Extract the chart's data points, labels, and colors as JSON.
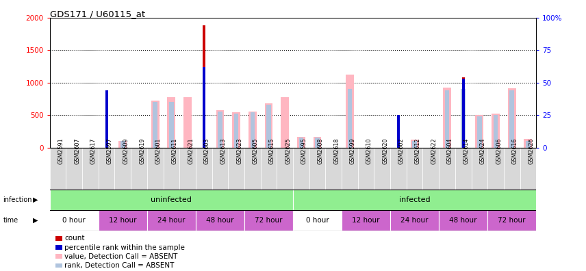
{
  "title": "GDS171 / U60115_at",
  "samples": [
    "GSM2591",
    "GSM2607",
    "GSM2617",
    "GSM2597",
    "GSM2609",
    "GSM2619",
    "GSM2601",
    "GSM2611",
    "GSM2621",
    "GSM2603",
    "GSM2613",
    "GSM2623",
    "GSM2605",
    "GSM2615",
    "GSM2625",
    "GSM2595",
    "GSM2608",
    "GSM2618",
    "GSM2599",
    "GSM2610",
    "GSM2620",
    "GSM2602",
    "GSM2612",
    "GSM2622",
    "GSM2604",
    "GSM2614",
    "GSM2624",
    "GSM2606",
    "GSM2616",
    "GSM2626"
  ],
  "count": [
    0,
    0,
    0,
    850,
    0,
    0,
    0,
    0,
    0,
    1880,
    0,
    0,
    0,
    0,
    0,
    0,
    0,
    0,
    0,
    0,
    0,
    490,
    0,
    0,
    0,
    1080,
    0,
    0,
    0,
    0
  ],
  "percentile": [
    0,
    0,
    0,
    44,
    0,
    0,
    0,
    0,
    0,
    62,
    0,
    0,
    0,
    0,
    0,
    0,
    0,
    0,
    0,
    0,
    0,
    25,
    0,
    0,
    0,
    53,
    0,
    0,
    0,
    0
  ],
  "value_absent": [
    0,
    0,
    0,
    0,
    100,
    0,
    720,
    780,
    780,
    0,
    580,
    540,
    560,
    680,
    780,
    170,
    170,
    0,
    1120,
    0,
    0,
    0,
    120,
    0,
    920,
    0,
    500,
    520,
    910,
    130
  ],
  "rank_absent": [
    0,
    0,
    0,
    0,
    5,
    0,
    35,
    35,
    0,
    0,
    28,
    26,
    27,
    33,
    0,
    8,
    8,
    0,
    45,
    0,
    0,
    0,
    5,
    0,
    44,
    45,
    24,
    25,
    44,
    5
  ],
  "infection_groups": [
    {
      "label": "uninfected",
      "start": 0,
      "end": 15
    },
    {
      "label": "infected",
      "start": 15,
      "end": 30
    }
  ],
  "time_groups": [
    {
      "label": "0 hour",
      "start": 0,
      "end": 3,
      "color": "#ffffff"
    },
    {
      "label": "12 hour",
      "start": 3,
      "end": 6,
      "color": "#cc66cc"
    },
    {
      "label": "24 hour",
      "start": 6,
      "end": 9,
      "color": "#cc66cc"
    },
    {
      "label": "48 hour",
      "start": 9,
      "end": 12,
      "color": "#cc66cc"
    },
    {
      "label": "72 hour",
      "start": 12,
      "end": 15,
      "color": "#cc66cc"
    },
    {
      "label": "0 hour",
      "start": 15,
      "end": 18,
      "color": "#ffffff"
    },
    {
      "label": "12 hour",
      "start": 18,
      "end": 21,
      "color": "#cc66cc"
    },
    {
      "label": "24 hour",
      "start": 21,
      "end": 24,
      "color": "#cc66cc"
    },
    {
      "label": "48 hour",
      "start": 24,
      "end": 27,
      "color": "#cc66cc"
    },
    {
      "label": "72 hour",
      "start": 27,
      "end": 30,
      "color": "#cc66cc"
    }
  ],
  "ylim_left": [
    0,
    2000
  ],
  "ylim_right": [
    0,
    100
  ],
  "yticks_left": [
    0,
    500,
    1000,
    1500,
    2000
  ],
  "yticks_right": [
    0,
    25,
    50,
    75,
    100
  ],
  "color_count": "#cc0000",
  "color_percentile": "#0000cc",
  "color_value_absent": "#ffb6c1",
  "color_rank_absent": "#b0c4de",
  "infection_color": "#90ee90",
  "legend_items": [
    {
      "color": "#cc0000",
      "label": "count"
    },
    {
      "color": "#0000cc",
      "label": "percentile rank within the sample"
    },
    {
      "color": "#ffb6c1",
      "label": "value, Detection Call = ABSENT"
    },
    {
      "color": "#b0c4de",
      "label": "rank, Detection Call = ABSENT"
    }
  ]
}
